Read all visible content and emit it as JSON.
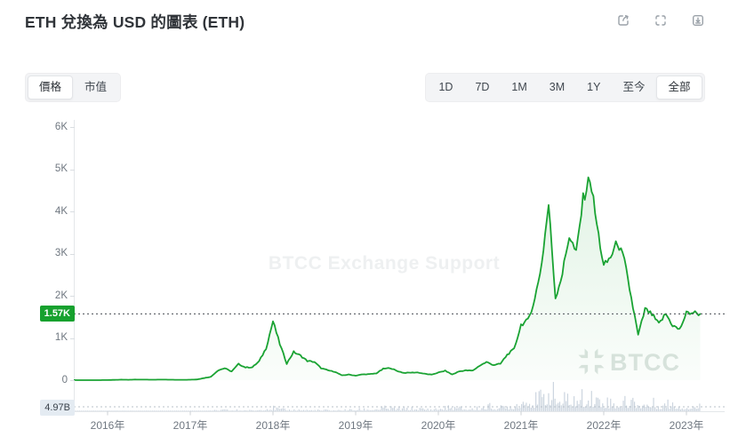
{
  "header": {
    "title": "ETH 兌換為 USD 的圖表 (ETH)",
    "actions": [
      {
        "icon": "share-icon"
      },
      {
        "icon": "fullscreen-icon"
      },
      {
        "icon": "download-icon"
      }
    ]
  },
  "tabs": [
    {
      "label": "價格"
    },
    {
      "label": "市值"
    }
  ],
  "active_tab": "價格",
  "ranges": [
    "1D",
    "7D",
    "1M",
    "3M",
    "1Y",
    "至今",
    "全部"
  ],
  "active_range": "全部",
  "chart_data": {
    "type": "area",
    "title": "ETH 兌換為 USD 的圖表 (ETH)",
    "legend": "none",
    "grid": "off",
    "x_axis": {
      "tick_labels": [
        "2016年",
        "2017年",
        "2018年",
        "2019年",
        "2020年",
        "2021年",
        "2022年",
        "2023年"
      ],
      "tick_years": [
        2016,
        2017,
        2018,
        2019,
        2020,
        2021,
        2022,
        2023
      ]
    },
    "y_axis": {
      "tick_labels": [
        "0",
        "1K",
        "2K",
        "3K",
        "4K",
        "5K",
        "6K"
      ],
      "tick_values": [
        0,
        1000,
        2000,
        3000,
        4000,
        5000,
        6000
      ],
      "range": [
        0,
        6000
      ]
    },
    "current_price": {
      "label": "1.57K",
      "value": 1570
    },
    "current_volume": {
      "label": "4.97B",
      "value_billion": 4.97
    },
    "watermark": "BTCC Exchange Support",
    "logo": "BTCC",
    "series": {
      "start": "2015-08",
      "price_monthly_usd": [
        1.2,
        0.9,
        0.9,
        0.9,
        0.9,
        2.5,
        6.3,
        11.6,
        8.8,
        14,
        12.5,
        11.5,
        11.2,
        13,
        10.8,
        8.5,
        8,
        10.7,
        15.8,
        50,
        80,
        230,
        283,
        205,
        383,
        302,
        305,
        447,
        756,
        1396,
        856,
        394,
        669,
        580,
        455,
        433,
        283,
        233,
        197,
        113,
        133,
        107,
        137,
        141,
        162,
        268,
        290,
        218,
        172,
        180,
        182,
        151,
        129,
        180,
        223,
        133,
        206,
        231,
        226,
        346,
        428,
        359,
        386,
        605,
        737,
        1314,
        1418,
        1918,
        2773,
        4168,
        1950,
        2531,
        3433,
        3001,
        4288,
        4812,
        3682,
        2688,
        2920,
        3282,
        2816,
        1942,
        1067,
        1681,
        1554,
        1328,
        1572,
        1297,
        1196,
        1586,
        1605,
        1570
      ],
      "volume_monthly_billion_usd": [
        0.01,
        0.01,
        0.01,
        0.01,
        0.02,
        0.03,
        0.05,
        0.09,
        0.07,
        0.11,
        0.09,
        0.07,
        0.06,
        0.07,
        0.05,
        0.05,
        0.05,
        0.12,
        0.22,
        0.6,
        0.9,
        1.6,
        2.1,
        1.5,
        2.2,
        1.8,
        1.3,
        2.6,
        5.2,
        5.6,
        3.6,
        2.1,
        2.6,
        2.5,
        2.0,
        1.7,
        1.8,
        1.9,
        1.5,
        1.9,
        2.3,
        2.9,
        3.3,
        3.5,
        4.0,
        5.2,
        5.6,
        4.6,
        4.1,
        4.3,
        4.1,
        3.6,
        3.3,
        4.6,
        5.6,
        6.8,
        5.1,
        4.6,
        4.2,
        5.6,
        8.2,
        7.2,
        5.6,
        8.8,
        10.5,
        19,
        21,
        17,
        23,
        36,
        26,
        18,
        21,
        19,
        22,
        25,
        21,
        17,
        15,
        13,
        15,
        18,
        15,
        12,
        13,
        11,
        12,
        14,
        9,
        8,
        9,
        8
      ]
    },
    "colors": {
      "line": "#1aa333",
      "fill_top": "rgba(26,163,51,0.13)",
      "fill_bottom": "rgba(26,163,51,0.02)",
      "volume_bar": "#ccd5df",
      "price_badge_bg": "#17a12e",
      "price_badge_text": "#ffffff",
      "volume_badge_bg": "#e4ebf2",
      "volume_badge_text": "#39414a",
      "dotted_price_line": "#4a4f55",
      "dotted_volume_line": "#b8c1ca",
      "axis_line": "#e4e7ea"
    }
  }
}
